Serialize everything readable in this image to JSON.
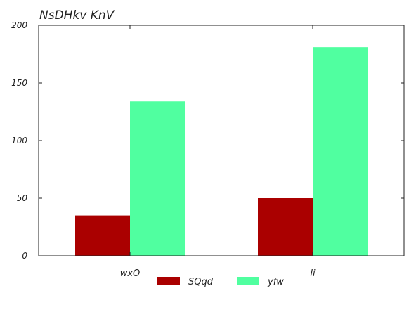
{
  "chart_data": {
    "type": "bar",
    "title": "NsDHkv KnV",
    "xlabel": "",
    "ylabel": "",
    "categories": [
      "wxO",
      "li"
    ],
    "series": [
      {
        "name": "SQqd",
        "values": [
          35,
          50
        ],
        "color": "#aa0000"
      },
      {
        "name": "yfw",
        "values": [
          134,
          181
        ],
        "color": "#50ffa0"
      }
    ],
    "ylim": [
      0,
      200
    ],
    "yticks": [
      0,
      50,
      100,
      150,
      200
    ],
    "grid": false,
    "legend": "bottom-center"
  }
}
